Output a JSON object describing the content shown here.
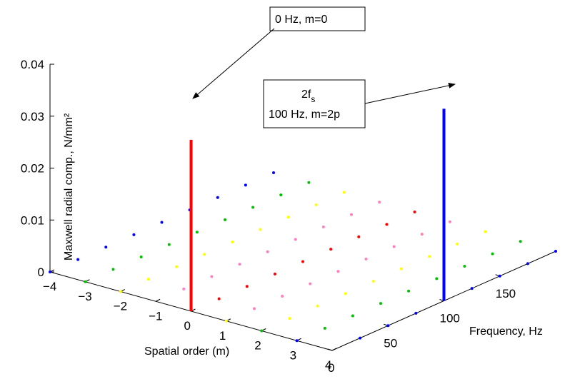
{
  "chart_data": {
    "type": "scatter",
    "title": "",
    "xlabel": "Spatial order (m)",
    "ylabel": "Frequency, Hz",
    "zlabel": "Maxwell radial comp., N/mm²",
    "xlim": [
      -4,
      4
    ],
    "ylim": [
      0,
      200
    ],
    "zlim": [
      0,
      0.04
    ],
    "xticks": [
      "−4",
      "−3",
      "−2",
      "−1",
      "0",
      "1",
      "2",
      "3",
      "4"
    ],
    "yticks": [
      "0",
      "50",
      "100",
      "150"
    ],
    "zticks": [
      "0",
      "0.01",
      "0.02",
      "0.03",
      "0.04"
    ],
    "grid": false,
    "colors": {
      "red": "#ff0000",
      "blue": "#0000ff",
      "green": "#00c000",
      "yellow": "#ffff00",
      "pink": "#ff80c0"
    },
    "stems": [
      {
        "m": 0,
        "f": 0,
        "value": 0.033,
        "color": "#ff0000"
      },
      {
        "m": 4,
        "f": 100,
        "value": 0.037,
        "color": "#0000ff"
      }
    ],
    "points": [
      {
        "m": -4,
        "f": 0,
        "color": "#0000ff"
      },
      {
        "m": -3,
        "f": 0,
        "color": "#00c000"
      },
      {
        "m": -2,
        "f": 0,
        "color": "#ffff00"
      },
      {
        "m": 1,
        "f": 0,
        "color": "#ffff00"
      },
      {
        "m": 2,
        "f": 0,
        "color": "#00c000"
      },
      {
        "m": 3,
        "f": 0,
        "color": "#0000ff"
      },
      {
        "m": -4,
        "f": 25,
        "color": "#0000ff"
      },
      {
        "m": -3,
        "f": 25,
        "color": "#00c000"
      },
      {
        "m": -2,
        "f": 25,
        "color": "#ffff00"
      },
      {
        "m": -1,
        "f": 25,
        "color": "#ff80c0"
      },
      {
        "m": 0,
        "f": 25,
        "color": "#ff0000"
      },
      {
        "m": 1,
        "f": 25,
        "color": "#ff80c0"
      },
      {
        "m": 2,
        "f": 25,
        "color": "#ffff00"
      },
      {
        "m": 3,
        "f": 25,
        "color": "#00c000"
      },
      {
        "m": 4,
        "f": 25,
        "color": "#0000ff"
      },
      {
        "m": -4,
        "f": 50,
        "color": "#0000ff"
      },
      {
        "m": -3,
        "f": 50,
        "color": "#00c000"
      },
      {
        "m": -2,
        "f": 50,
        "color": "#ffff00"
      },
      {
        "m": -1,
        "f": 50,
        "color": "#ff80c0"
      },
      {
        "m": 0,
        "f": 50,
        "color": "#ff0000"
      },
      {
        "m": 1,
        "f": 50,
        "color": "#ff80c0"
      },
      {
        "m": 2,
        "f": 50,
        "color": "#ffff00"
      },
      {
        "m": 3,
        "f": 50,
        "color": "#00c000"
      },
      {
        "m": 4,
        "f": 50,
        "color": "#0000ff"
      },
      {
        "m": -4,
        "f": 75,
        "color": "#0000ff"
      },
      {
        "m": -3,
        "f": 75,
        "color": "#00c000"
      },
      {
        "m": -2,
        "f": 75,
        "color": "#ffff00"
      },
      {
        "m": -1,
        "f": 75,
        "color": "#ff80c0"
      },
      {
        "m": 0,
        "f": 75,
        "color": "#ff0000"
      },
      {
        "m": 1,
        "f": 75,
        "color": "#ff80c0"
      },
      {
        "m": 2,
        "f": 75,
        "color": "#ffff00"
      },
      {
        "m": 3,
        "f": 75,
        "color": "#00c000"
      },
      {
        "m": 4,
        "f": 75,
        "color": "#0000ff"
      },
      {
        "m": -4,
        "f": 100,
        "color": "#0000ff"
      },
      {
        "m": -3,
        "f": 100,
        "color": "#00c000"
      },
      {
        "m": -2,
        "f": 100,
        "color": "#ffff00"
      },
      {
        "m": -1,
        "f": 100,
        "color": "#ff80c0"
      },
      {
        "m": 0,
        "f": 100,
        "color": "#ff0000"
      },
      {
        "m": 1,
        "f": 100,
        "color": "#ff80c0"
      },
      {
        "m": 2,
        "f": 100,
        "color": "#ffff00"
      },
      {
        "m": 3,
        "f": 100,
        "color": "#00c000"
      },
      {
        "m": -4,
        "f": 125,
        "color": "#0000ff"
      },
      {
        "m": -3,
        "f": 125,
        "color": "#00c000"
      },
      {
        "m": -2,
        "f": 125,
        "color": "#ffff00"
      },
      {
        "m": -1,
        "f": 125,
        "color": "#ff80c0"
      },
      {
        "m": 0,
        "f": 125,
        "color": "#ff0000"
      },
      {
        "m": 1,
        "f": 125,
        "color": "#ff80c0"
      },
      {
        "m": 2,
        "f": 125,
        "color": "#ffff00"
      },
      {
        "m": 3,
        "f": 125,
        "color": "#00c000"
      },
      {
        "m": 4,
        "f": 125,
        "color": "#0000ff"
      },
      {
        "m": -4,
        "f": 150,
        "color": "#0000ff"
      },
      {
        "m": -3,
        "f": 150,
        "color": "#00c000"
      },
      {
        "m": -2,
        "f": 150,
        "color": "#ffff00"
      },
      {
        "m": -1,
        "f": 150,
        "color": "#ff80c0"
      },
      {
        "m": 0,
        "f": 150,
        "color": "#ff0000"
      },
      {
        "m": 1,
        "f": 150,
        "color": "#ff80c0"
      },
      {
        "m": 2,
        "f": 150,
        "color": "#ffff00"
      },
      {
        "m": 3,
        "f": 150,
        "color": "#00c000"
      },
      {
        "m": 4,
        "f": 150,
        "color": "#0000ff"
      },
      {
        "m": -4,
        "f": 175,
        "color": "#0000ff"
      },
      {
        "m": -3,
        "f": 175,
        "color": "#00c000"
      },
      {
        "m": -2,
        "f": 175,
        "color": "#ffff00"
      },
      {
        "m": -1,
        "f": 175,
        "color": "#ff80c0"
      },
      {
        "m": 0,
        "f": 175,
        "color": "#ff0000"
      },
      {
        "m": 1,
        "f": 175,
        "color": "#ff80c0"
      },
      {
        "m": 2,
        "f": 175,
        "color": "#ffff00"
      },
      {
        "m": 3,
        "f": 175,
        "color": "#00c000"
      },
      {
        "m": 4,
        "f": 175,
        "color": "#0000ff"
      },
      {
        "m": -4,
        "f": 200,
        "color": "#0000ff"
      },
      {
        "m": -3,
        "f": 200,
        "color": "#00c000"
      },
      {
        "m": -2,
        "f": 200,
        "color": "#ffff00"
      },
      {
        "m": -1,
        "f": 200,
        "color": "#ff80c0"
      },
      {
        "m": 0,
        "f": 200,
        "color": "#ff0000"
      },
      {
        "m": 1,
        "f": 200,
        "color": "#ff80c0"
      },
      {
        "m": 2,
        "f": 200,
        "color": "#ffff00"
      },
      {
        "m": 3,
        "f": 200,
        "color": "#00c000"
      },
      {
        "m": 4,
        "f": 200,
        "color": "#0000ff"
      }
    ],
    "annotations": [
      {
        "lines": [
          "0 Hz, m=0"
        ],
        "points_to": {
          "m": 0,
          "f": 0,
          "value": 0.033
        }
      },
      {
        "lines": [
          "2f",
          "100 Hz, m=2p"
        ],
        "subscript": "s",
        "points_to": {
          "m": 4,
          "f": 100,
          "value": 0.037
        }
      }
    ]
  }
}
